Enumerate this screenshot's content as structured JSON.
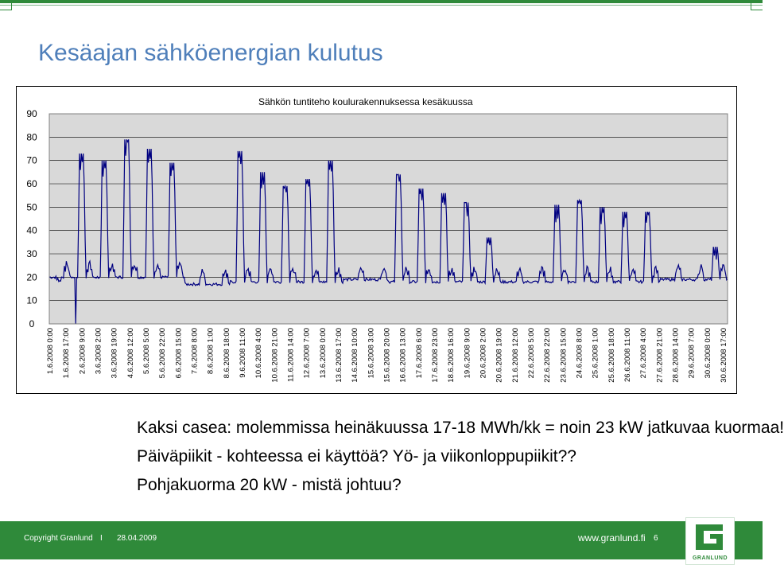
{
  "page": {
    "title": "Kesäajan sähköenergian kulutus"
  },
  "chart_data": {
    "type": "line",
    "title": "Sähkön tuntiteho koulurakennuksessa kesäkuussa",
    "xlabel": "",
    "ylabel": "",
    "ylim": [
      0,
      90
    ],
    "yticks": [
      0,
      10,
      20,
      30,
      40,
      50,
      60,
      70,
      80,
      90
    ],
    "grid": true,
    "line_color": "#000080",
    "plot_background": "#d9d9d9",
    "x_tick_labels": [
      "1.6.2008 0:00",
      "1.6.2008 17:00",
      "2.6.2008 9:00",
      "3.6.2008 2:00",
      "3.6.2008 19:00",
      "4.6.2008 12:00",
      "5.6.2008 5:00",
      "5.6.2008 22:00",
      "6.6.2008 15:00",
      "7.6.2008 8:00",
      "8.6.2008 1:00",
      "8.6.2008 18:00",
      "9.6.2008 11:00",
      "10.6.2008 4:00",
      "10.6.2008 21:00",
      "11.6.2008 14:00",
      "12.6.2008 7:00",
      "13.6.2008 0:00",
      "13.6.2008 17:00",
      "14.6.2008 10:00",
      "15.6.2008 3:00",
      "15.6.2008 20:00",
      "16.6.2008 13:00",
      "17.6.2008 6:00",
      "17.6.2008 23:00",
      "18.6.2008 16:00",
      "19.6.2008 9:00",
      "20.6.2008 2:00",
      "20.6.2008 19:00",
      "21.6.2008 12:00",
      "22.6.2008 5:00",
      "22.6.2008 22:00",
      "23.6.2008 15:00",
      "24.6.2008 8:00",
      "25.6.2008 1:00",
      "25.6.2008 18:00",
      "26.6.2008 11:00",
      "27.6.2008 4:00",
      "27.6.2008 21:00",
      "28.6.2008 14:00",
      "29.6.2008 7:00",
      "30.6.2008 0:00",
      "30.6.2008 17:00"
    ],
    "daily": [
      {
        "day": 1,
        "base": 20,
        "peak": 24,
        "work": false
      },
      {
        "day": 2,
        "base": 20,
        "peak": 73,
        "work": true
      },
      {
        "day": 3,
        "base": 20,
        "peak": 70,
        "work": true
      },
      {
        "day": 4,
        "base": 20,
        "peak": 79,
        "work": true
      },
      {
        "day": 5,
        "base": 20,
        "peak": 75,
        "work": true
      },
      {
        "day": 6,
        "base": 20,
        "peak": 69,
        "work": true
      },
      {
        "day": 7,
        "base": 17,
        "peak": 21,
        "work": false
      },
      {
        "day": 8,
        "base": 17,
        "peak": 22,
        "work": false
      },
      {
        "day": 9,
        "base": 18,
        "peak": 74,
        "work": true
      },
      {
        "day": 10,
        "base": 18,
        "peak": 65,
        "work": true
      },
      {
        "day": 11,
        "base": 18,
        "peak": 59,
        "work": true
      },
      {
        "day": 12,
        "base": 18,
        "peak": 62,
        "work": true
      },
      {
        "day": 13,
        "base": 18,
        "peak": 70,
        "work": true
      },
      {
        "day": 14,
        "base": 19,
        "peak": 24,
        "work": false
      },
      {
        "day": 15,
        "base": 19,
        "peak": 24,
        "work": false
      },
      {
        "day": 16,
        "base": 18,
        "peak": 64,
        "work": true
      },
      {
        "day": 17,
        "base": 18,
        "peak": 58,
        "work": true
      },
      {
        "day": 18,
        "base": 18,
        "peak": 56,
        "work": true
      },
      {
        "day": 19,
        "base": 18,
        "peak": 52,
        "work": true
      },
      {
        "day": 20,
        "base": 18,
        "peak": 37,
        "work": true
      },
      {
        "day": 21,
        "base": 18,
        "peak": 20,
        "work": false
      },
      {
        "day": 22,
        "base": 18,
        "peak": 20,
        "work": false
      },
      {
        "day": 23,
        "base": 18,
        "peak": 51,
        "work": true
      },
      {
        "day": 24,
        "base": 18,
        "peak": 53,
        "work": true
      },
      {
        "day": 25,
        "base": 18,
        "peak": 50,
        "work": true
      },
      {
        "day": 26,
        "base": 18,
        "peak": 48,
        "work": true
      },
      {
        "day": 27,
        "base": 18,
        "peak": 48,
        "work": true
      },
      {
        "day": 28,
        "base": 19,
        "peak": 20,
        "work": false
      },
      {
        "day": 29,
        "base": 19,
        "peak": 20,
        "work": false
      },
      {
        "day": 30,
        "base": 19,
        "peak": 33,
        "work": true
      }
    ]
  },
  "notes": [
    "Kaksi casea: molemmissa heinäkuussa 17-18 MWh/kk = noin 23 kW jatkuvaa kuormaa!",
    "Päiväpiikit - kohteessa ei käyttöä? Yö- ja viikonloppupiikit??",
    "Pohjakuorma 20 kW - mistä johtuu?"
  ],
  "footer": {
    "copyright": "Copyright Granlund",
    "separator": "I",
    "date": "28.04.2009",
    "url": "www.granlund.fi",
    "page_number": "6",
    "logo_text": "GRANLUND",
    "background": "#2f8a3a"
  }
}
